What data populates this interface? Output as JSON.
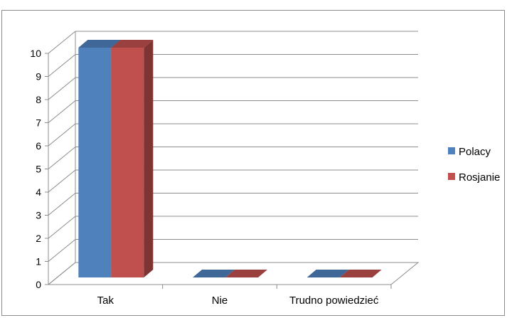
{
  "chart_data": {
    "type": "bar",
    "categories": [
      "Tak",
      "Nie",
      "Trudno powiedzieć"
    ],
    "series": [
      {
        "name": "Polacy",
        "values": [
          10,
          0,
          0
        ],
        "color": "#4F81BD"
      },
      {
        "name": "Rosjanie",
        "values": [
          10,
          0,
          0
        ],
        "color": "#C0504D"
      }
    ],
    "ylim": [
      0,
      10
    ],
    "yticks": [
      0,
      1,
      2,
      3,
      4,
      5,
      6,
      7,
      8,
      9,
      10
    ],
    "grid": true,
    "legend": "right",
    "style": "3d-clustered-column"
  }
}
